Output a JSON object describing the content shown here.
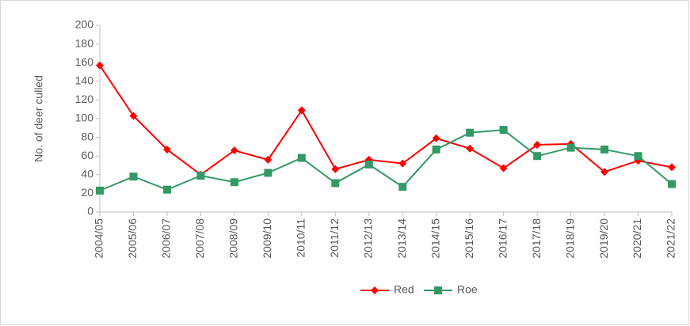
{
  "chart_data": {
    "type": "line",
    "y_label": "No. of deer culled",
    "categories": [
      "2004/05",
      "2005/06",
      "2006/07",
      "2007/08",
      "2008/09",
      "2009/10",
      "2010/11",
      "2011/12",
      "2012/13",
      "2013/14",
      "2014/15",
      "2015/16",
      "2016/17",
      "2017/18",
      "2018/19",
      "2019/20",
      "2020/21",
      "2021/22"
    ],
    "series": [
      {
        "name": "Red",
        "color": "#ff0000",
        "marker": "diamond",
        "values": [
          157,
          103,
          67,
          40,
          66,
          56,
          109,
          46,
          56,
          52,
          79,
          68,
          47,
          72,
          73,
          43,
          55,
          48
        ]
      },
      {
        "name": "Roe",
        "color": "#339966",
        "marker": "square",
        "values": [
          23,
          38,
          24,
          39,
          32,
          42,
          58,
          31,
          51,
          27,
          67,
          85,
          88,
          60,
          69,
          67,
          60,
          30
        ]
      }
    ],
    "ylim": [
      0,
      200
    ],
    "yticks": [
      0,
      20,
      40,
      60,
      80,
      100,
      120,
      140,
      160,
      180,
      200
    ],
    "grid": false,
    "legend": "bottom"
  }
}
